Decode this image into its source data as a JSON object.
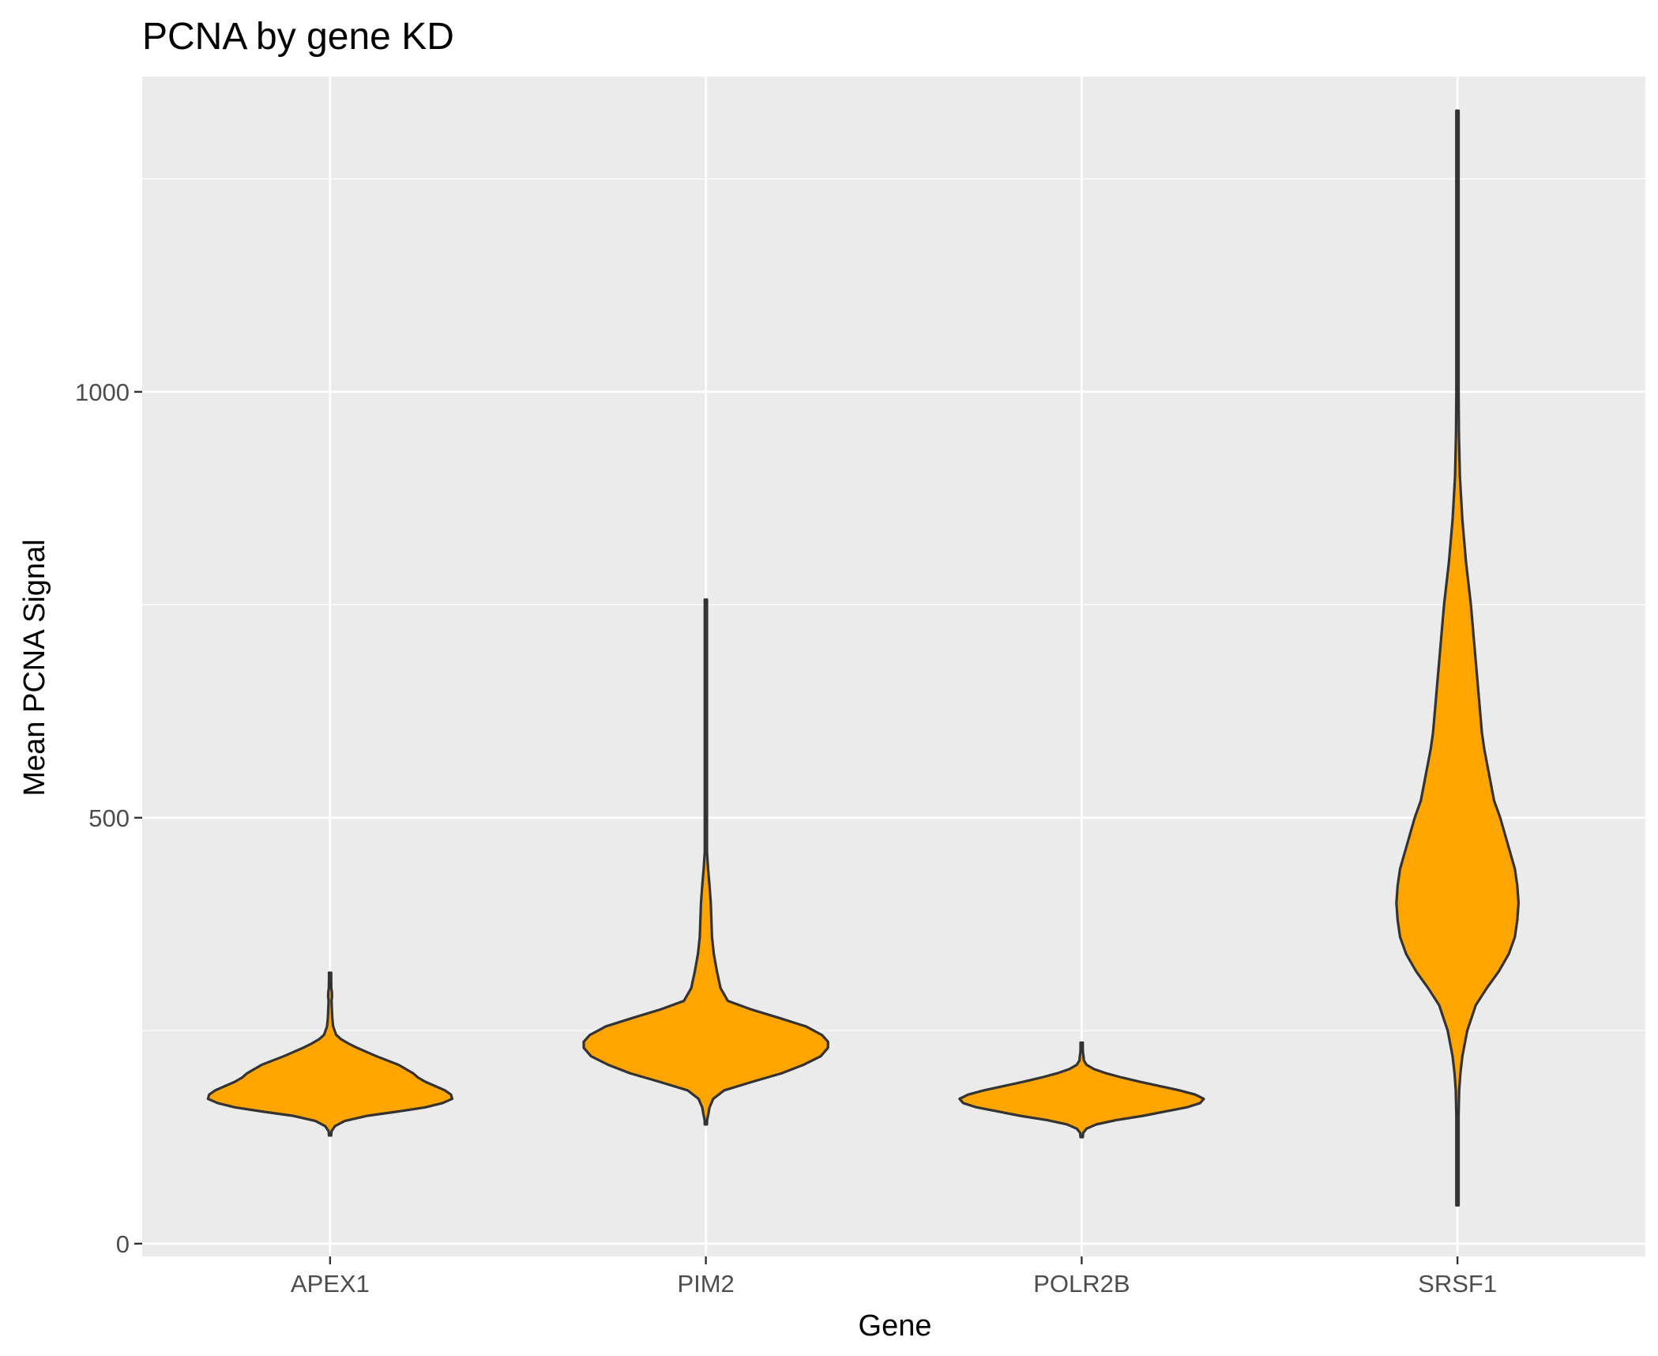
{
  "chart_data": {
    "type": "violin",
    "title": "PCNA by gene KD",
    "xlabel": "Gene",
    "ylabel": "Mean PCNA Signal",
    "categories": [
      "APEX1",
      "PIM2",
      "POLR2B",
      "SRSF1"
    ],
    "ylim": [
      -15,
      1370
    ],
    "yticks": [
      0,
      500,
      1000
    ],
    "ytick_labels": [
      "0",
      "500",
      "1000"
    ],
    "grid": true,
    "legend": "none",
    "fill_color": "#FFA500",
    "outline_color": "#333333",
    "panel_color": "#EBEBEB",
    "series": [
      {
        "category": "APEX1",
        "profile": [
          [
            127,
            0
          ],
          [
            132,
            0.012
          ],
          [
            138,
            0.04
          ],
          [
            144,
            0.12
          ],
          [
            150,
            0.3
          ],
          [
            155,
            0.55
          ],
          [
            160,
            0.78
          ],
          [
            165,
            0.92
          ],
          [
            170,
            1.0
          ],
          [
            175,
            0.99
          ],
          [
            180,
            0.94
          ],
          [
            185,
            0.86
          ],
          [
            190,
            0.78
          ],
          [
            195,
            0.72
          ],
          [
            200,
            0.68
          ],
          [
            205,
            0.62
          ],
          [
            210,
            0.56
          ],
          [
            215,
            0.47
          ],
          [
            220,
            0.38
          ],
          [
            225,
            0.3
          ],
          [
            230,
            0.22
          ],
          [
            235,
            0.15
          ],
          [
            240,
            0.09
          ],
          [
            245,
            0.05
          ],
          [
            255,
            0.025
          ],
          [
            265,
            0.018
          ],
          [
            275,
            0.015
          ],
          [
            285,
            0.012
          ],
          [
            290,
            0.016
          ],
          [
            295,
            0.015
          ],
          [
            300,
            0.01
          ],
          [
            310,
            0.005
          ],
          [
            318,
            0
          ]
        ]
      },
      {
        "category": "PIM2",
        "profile": [
          [
            140,
            0
          ],
          [
            145,
            0.01
          ],
          [
            152,
            0.02
          ],
          [
            160,
            0.03
          ],
          [
            170,
            0.06
          ],
          [
            180,
            0.15
          ],
          [
            190,
            0.38
          ],
          [
            200,
            0.62
          ],
          [
            210,
            0.8
          ],
          [
            220,
            0.94
          ],
          [
            230,
            1.0
          ],
          [
            237,
            1.0
          ],
          [
            245,
            0.95
          ],
          [
            255,
            0.82
          ],
          [
            265,
            0.6
          ],
          [
            275,
            0.37
          ],
          [
            285,
            0.18
          ],
          [
            300,
            0.12
          ],
          [
            320,
            0.09
          ],
          [
            340,
            0.065
          ],
          [
            360,
            0.05
          ],
          [
            380,
            0.045
          ],
          [
            400,
            0.04
          ],
          [
            420,
            0.03
          ],
          [
            440,
            0.018
          ],
          [
            460,
            0.008
          ],
          [
            500,
            0.006
          ],
          [
            540,
            0.004
          ],
          [
            600,
            0.003
          ],
          [
            660,
            0.003
          ],
          [
            700,
            0.003
          ],
          [
            720,
            0.002
          ],
          [
            750,
            0.001
          ],
          [
            756,
            0
          ]
        ]
      },
      {
        "category": "POLR2B",
        "profile": [
          [
            125,
            0
          ],
          [
            130,
            0.012
          ],
          [
            135,
            0.04
          ],
          [
            140,
            0.12
          ],
          [
            145,
            0.28
          ],
          [
            150,
            0.5
          ],
          [
            155,
            0.68
          ],
          [
            160,
            0.86
          ],
          [
            165,
            0.97
          ],
          [
            170,
            1.0
          ],
          [
            175,
            0.93
          ],
          [
            180,
            0.8
          ],
          [
            185,
            0.64
          ],
          [
            190,
            0.48
          ],
          [
            195,
            0.33
          ],
          [
            200,
            0.2
          ],
          [
            205,
            0.1
          ],
          [
            210,
            0.04
          ],
          [
            215,
            0.018
          ],
          [
            220,
            0.015
          ],
          [
            225,
            0.01
          ],
          [
            230,
            0.004
          ],
          [
            236,
            0
          ]
        ]
      },
      {
        "category": "SRSF1",
        "profile": [
          [
            45,
            0
          ],
          [
            100,
            0.004
          ],
          [
            150,
            0.008
          ],
          [
            180,
            0.014
          ],
          [
            200,
            0.024
          ],
          [
            220,
            0.04
          ],
          [
            250,
            0.08
          ],
          [
            280,
            0.15
          ],
          [
            300,
            0.24
          ],
          [
            320,
            0.34
          ],
          [
            340,
            0.42
          ],
          [
            360,
            0.47
          ],
          [
            380,
            0.49
          ],
          [
            400,
            0.5
          ],
          [
            420,
            0.49
          ],
          [
            440,
            0.47
          ],
          [
            460,
            0.43
          ],
          [
            480,
            0.39
          ],
          [
            500,
            0.35
          ],
          [
            520,
            0.3
          ],
          [
            550,
            0.26
          ],
          [
            580,
            0.22
          ],
          [
            600,
            0.2
          ],
          [
            650,
            0.17
          ],
          [
            700,
            0.14
          ],
          [
            750,
            0.11
          ],
          [
            800,
            0.07
          ],
          [
            850,
            0.04
          ],
          [
            900,
            0.02
          ],
          [
            950,
            0.012
          ],
          [
            1000,
            0.008
          ],
          [
            1100,
            0.005
          ],
          [
            1200,
            0.004
          ],
          [
            1300,
            0.003
          ],
          [
            1330,
            0
          ]
        ]
      }
    ]
  }
}
